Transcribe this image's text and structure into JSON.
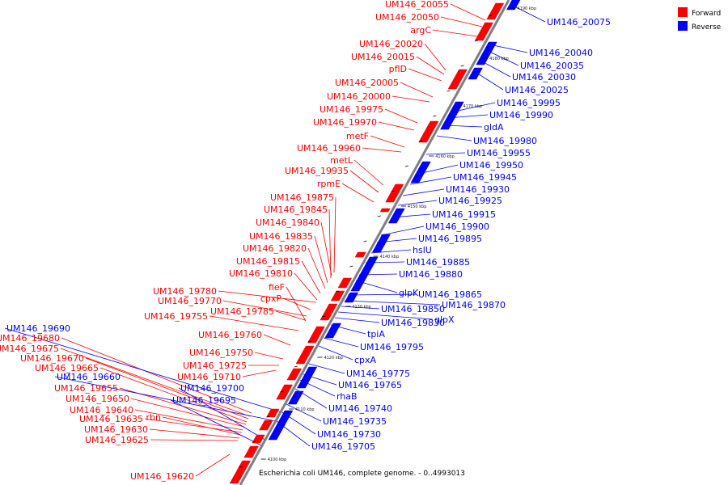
{
  "title": "Escherichia coli UM146, complete genome. - 0..4993013",
  "legend": [
    {
      "label": "Forward",
      "color": "#ff0000"
    },
    {
      "label": "Reverse",
      "color": "#0000ff"
    }
  ],
  "colors": {
    "forward": "#ff0000",
    "reverse": "#0000ff",
    "backbone": "#7f7f7f",
    "pointer_fwd": "#ff0000",
    "pointer_rev": "#0000ff"
  },
  "ticks": [
    "4100 kbp",
    "4110 kbp",
    "4120 kbp",
    "4130 kbp",
    "4140 kbp",
    "4150 kbp",
    "4160 kbp",
    "4170 kbp",
    "4180 kbp",
    "4190 kbp"
  ],
  "forward_labels": [
    "UM146_20055",
    "UM146_20050",
    "argC",
    "UM146_20020",
    "UM146_20015",
    "pflD",
    "UM146_20005",
    "UM146_20000",
    "UM146_19975",
    "UM146_19970",
    "metF",
    "UM146_19960",
    "metL",
    "UM146_19935",
    "rpmE",
    "UM146_19875",
    "UM146_19845",
    "UM146_19840",
    "UM146_19835",
    "UM146_19820",
    "UM146_19815",
    "UM146_19810",
    "fieF",
    "UM146_19780",
    "cpxP",
    "UM146_19770",
    "UM146_19785",
    "UM146_19755",
    "UM146_19760",
    "UM146_19750",
    "UM146_19725",
    "UM146_19710",
    "UM146_19680",
    "UM146_19675",
    "UM146_19670",
    "UM146_19665",
    "UM146_19655",
    "UM146_19650",
    "UM146_19640",
    "UM146_19635",
    "rbn",
    "UM146_19630",
    "UM146_19625",
    "UM146_19620"
  ],
  "reverse_labels": [
    "UM146_20075",
    "UM146_20040",
    "UM146_20035",
    "UM146_20030",
    "UM146_20025",
    "UM146_19995",
    "UM146_19990",
    "gldA",
    "UM146_19980",
    "UM146_19955",
    "UM146_19950",
    "UM146_19945",
    "UM146_19930",
    "UM146_19925",
    "UM146_19915",
    "UM146_19900",
    "UM146_19895",
    "hslU",
    "UM146_19885",
    "UM146_19880",
    "glpK",
    "UM146_19865",
    "UM146_19870",
    "UM146_19850",
    "glpX",
    "UM146_19830",
    "tpiA",
    "UM146_19795",
    "cpxA",
    "UM146_19775",
    "UM146_19765",
    "rhaB",
    "UM146_19740",
    "UM146_19735",
    "UM146_19730",
    "UM146_19705",
    "UM146_19690",
    "UM146_19660",
    "UM146_19700",
    "UM146_19695"
  ]
}
